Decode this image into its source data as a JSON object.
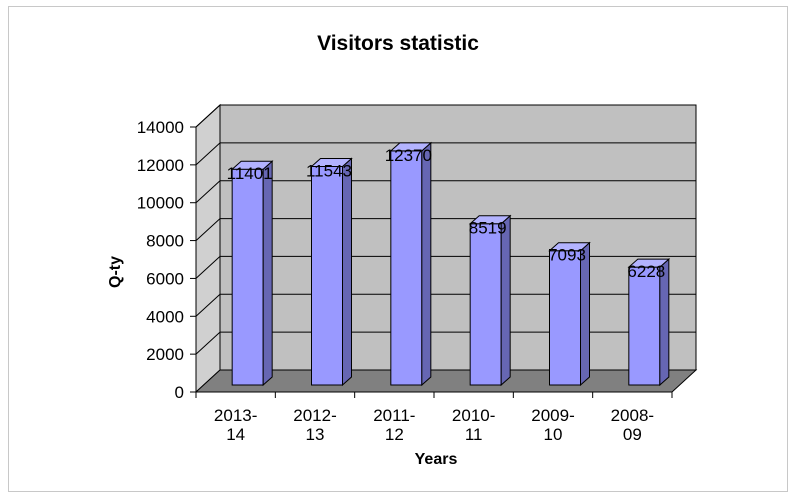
{
  "chart_data": {
    "type": "bar",
    "title": "Visitors statistic",
    "xlabel": "Years",
    "ylabel": "Q-ty",
    "ylim": [
      0,
      14000
    ],
    "yticks": [
      0,
      2000,
      4000,
      6000,
      8000,
      10000,
      12000,
      14000
    ],
    "categories": [
      [
        "2013-",
        "14"
      ],
      [
        "2012-",
        "13"
      ],
      [
        "2011-",
        "12"
      ],
      [
        "2010-",
        "11"
      ],
      [
        "2009-",
        "10"
      ],
      [
        "2008-",
        "09"
      ]
    ],
    "values": [
      11401,
      11543,
      12370,
      8519,
      7093,
      6228
    ],
    "data_labels": [
      "11401",
      "11543",
      "12370",
      "8519",
      "7093",
      "6228"
    ],
    "grid": true,
    "bar_color": "#9999ff",
    "bar_side_color": "#6666b3",
    "bar_top_color": "#b3b3ff",
    "wall_color": "#c0c0c0",
    "floor_color": "#808080"
  }
}
